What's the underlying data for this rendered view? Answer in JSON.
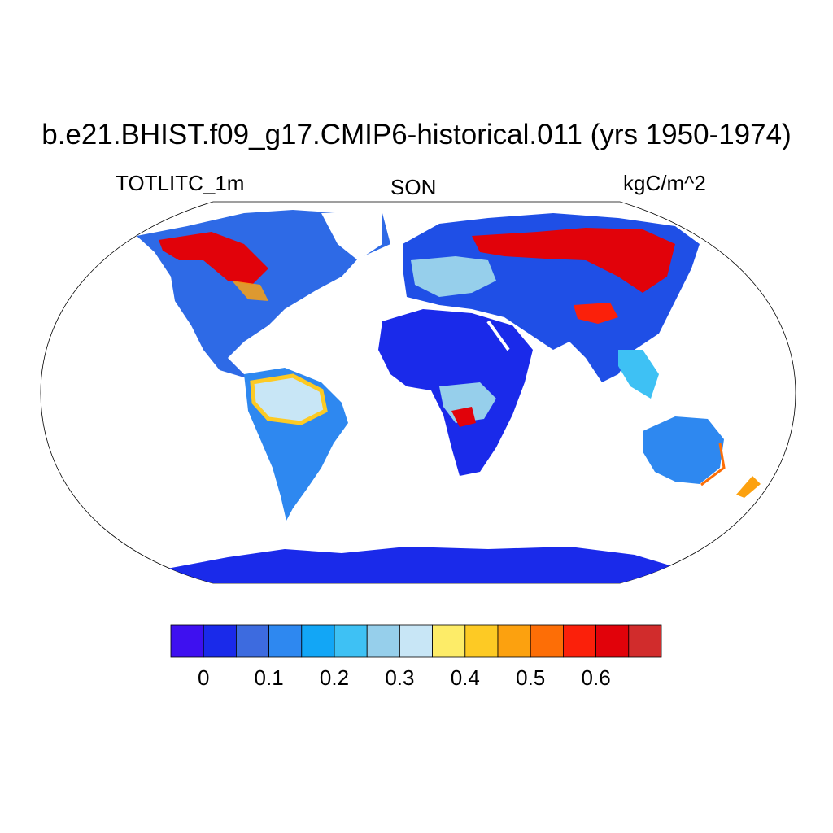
{
  "title": "b.e21.BHIST.f09_g17.CMIP6-historical.011 (yrs 1950-1974)",
  "variable": "TOTLITC_1m",
  "season": "SON",
  "units": "kgC/m^2",
  "colorbar": {
    "colors": [
      "#3e10f0",
      "#1a2aea",
      "#3d6bdf",
      "#2e88f0",
      "#12a6f6",
      "#3ec1f4",
      "#96cfeb",
      "#c8e6f6",
      "#fdec68",
      "#fdca24",
      "#fca10f",
      "#fd6e06",
      "#fb200a",
      "#e1020a",
      "#d12c2c"
    ],
    "tick_labels": [
      "0",
      "0.1",
      "0.2",
      "0.3",
      "0.4",
      "0.5",
      "0.6"
    ]
  },
  "legend_colors": {
    "ocean": "#ffffff",
    "low": "#1a2aea",
    "mid": "#96cfeb",
    "high": "#e1020a"
  }
}
